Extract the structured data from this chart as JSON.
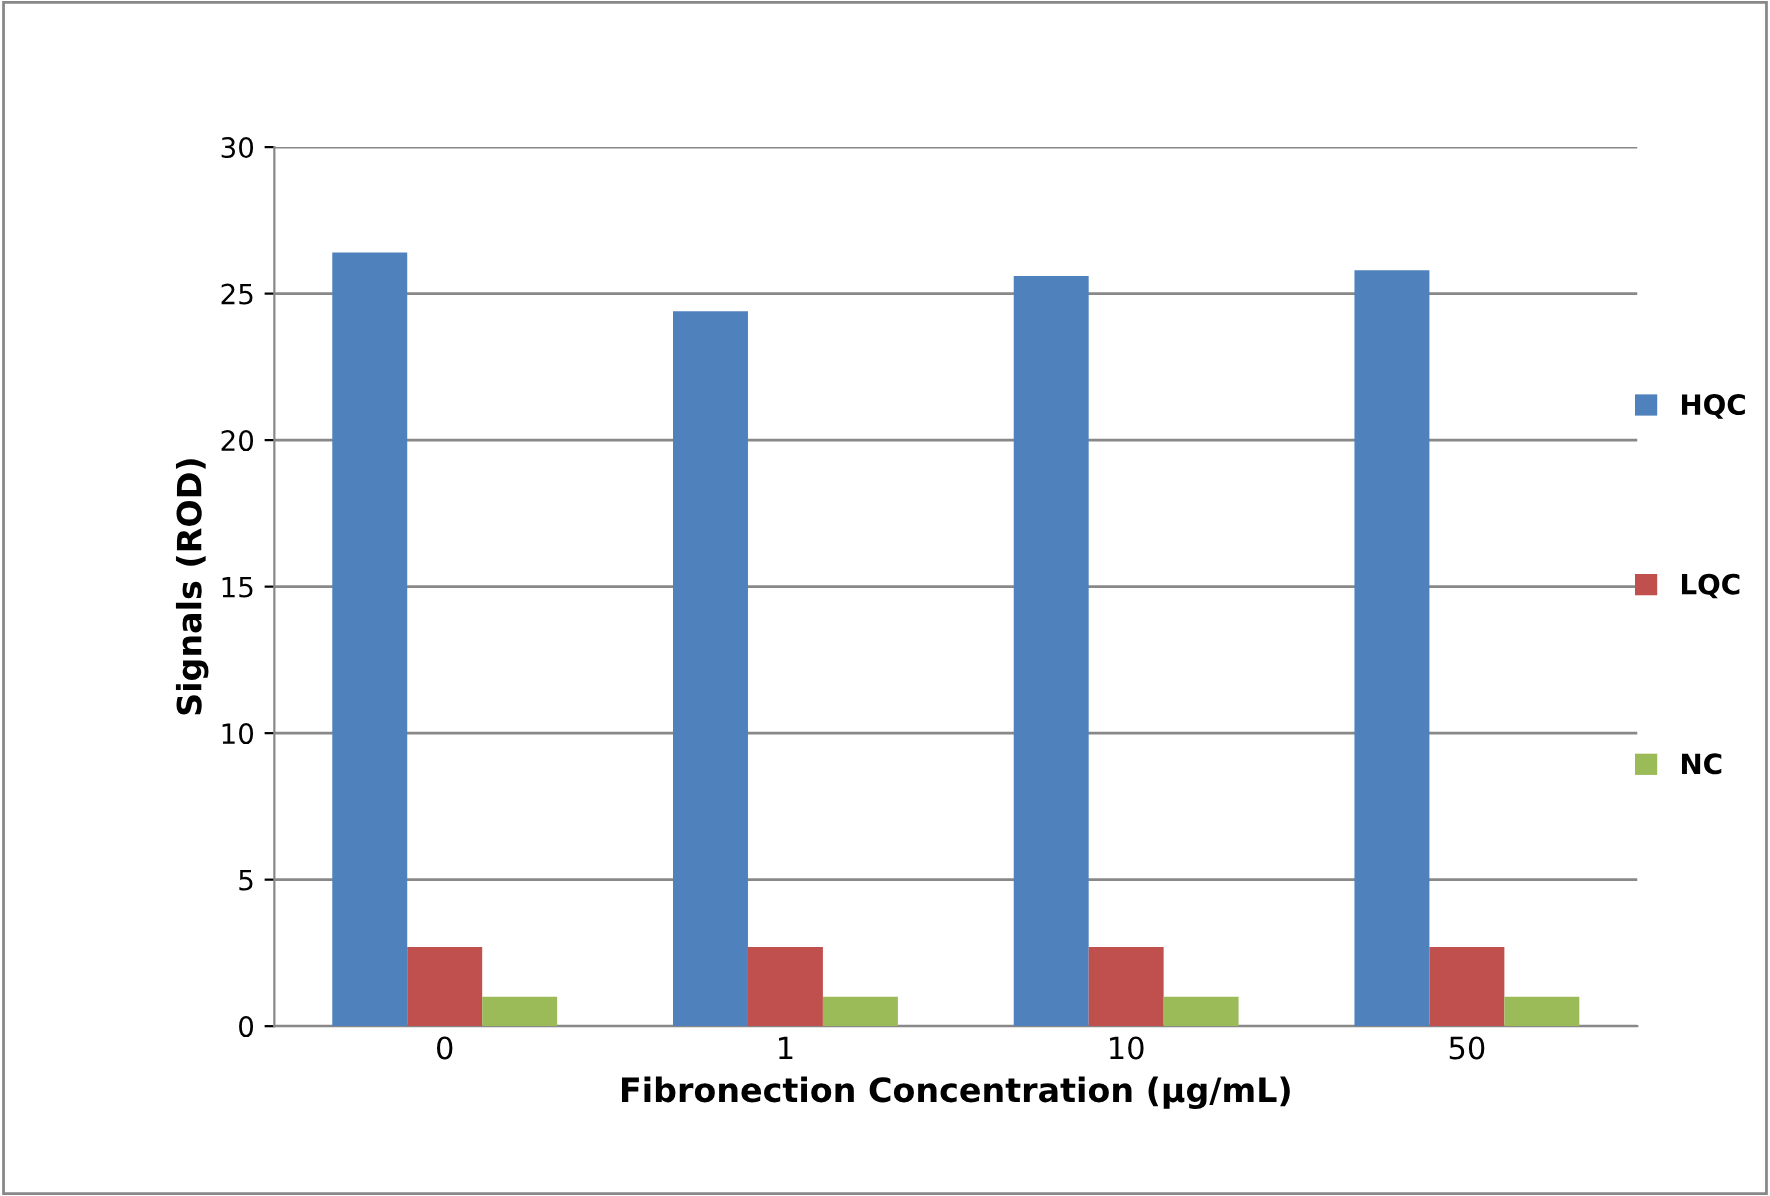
{
  "chart_data": {
    "type": "bar",
    "xlabel": "Fibronection Concentration (µg/mL)",
    "ylabel": "Signals (ROD)",
    "categories": [
      "0",
      "1",
      "10",
      "50"
    ],
    "series": [
      {
        "name": "HQC",
        "color": "#4f81bd",
        "values": [
          26.4,
          24.4,
          25.6,
          25.8
        ]
      },
      {
        "name": "LQC",
        "color": "#c0504d",
        "values": [
          2.7,
          2.7,
          2.7,
          2.7
        ]
      },
      {
        "name": "NC",
        "color": "#9bbb59",
        "values": [
          1.0,
          1.0,
          1.0,
          1.0
        ]
      }
    ],
    "ylim": [
      0,
      30
    ],
    "yticks": [
      0,
      5,
      10,
      15,
      20,
      25,
      30
    ],
    "grid": "y",
    "legend": "right"
  }
}
